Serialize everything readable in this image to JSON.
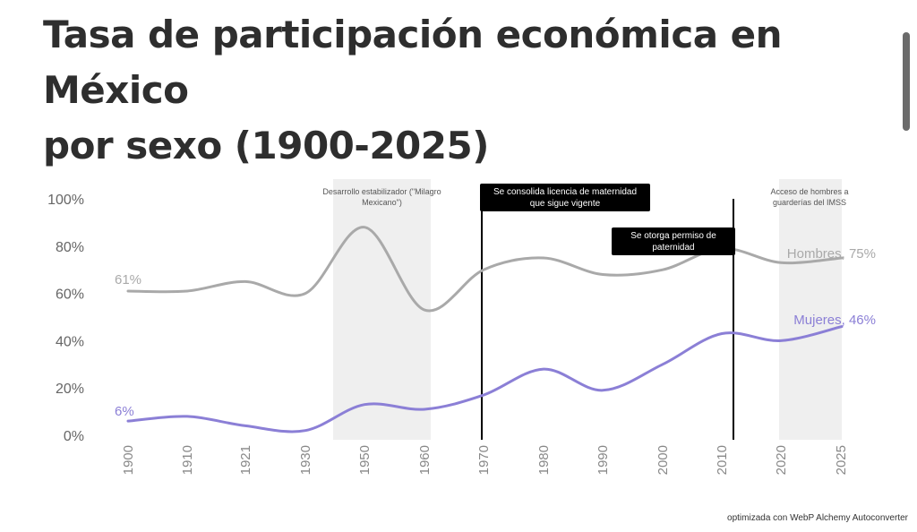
{
  "title": {
    "line1": "Tasa de participación económica en México",
    "line2": "por sexo (1900-2025)"
  },
  "footer": "optimizada con WebP Alchemy Autoconverter",
  "colors": {
    "hombres": "#a9a9a9",
    "mujeres": "#8b7fd6",
    "band": "#efefef",
    "callout": "#000000"
  },
  "chart_data": {
    "type": "line",
    "title": "Tasa de participación económica en México por sexo (1900-2025)",
    "x_ticks": [
      "1900",
      "1910",
      "1921",
      "1930",
      "1950",
      "1960",
      "1970",
      "1980",
      "1990",
      "2000",
      "2010",
      "2020",
      "2025"
    ],
    "y_ticks": [
      "0%",
      "20%",
      "40%",
      "60%",
      "80%",
      "100%"
    ],
    "ylim": [
      0,
      100
    ],
    "grid": false,
    "series": [
      {
        "name": "Hombres",
        "end_label": "Hombres, 75%",
        "start_label": "61%",
        "values": [
          61,
          61,
          65,
          60,
          88,
          53,
          70,
          75,
          68,
          70,
          79,
          73,
          75
        ]
      },
      {
        "name": "Mujeres",
        "end_label": "Mujeres, 46%",
        "start_label": "6%",
        "values": [
          6,
          8,
          4,
          2,
          13,
          11,
          17,
          28,
          19,
          30,
          43,
          40,
          46
        ]
      }
    ],
    "shaded_periods": [
      {
        "from": "1930",
        "to": "1960",
        "label_lines": [
          "Desarrollo estabilizador (\"Milagro",
          "Mexicano\")"
        ]
      },
      {
        "from": "2020",
        "to": "2025",
        "label_lines": [
          "Acceso de hombres a",
          "guarderías del IMSS"
        ]
      }
    ],
    "events": [
      {
        "at": "1970",
        "label_lines": [
          "Se consolida licencia de maternidad",
          "que sigue vigente"
        ]
      },
      {
        "at": "2010",
        "label_lines": [
          "Se otorga permiso de",
          "paternidad"
        ]
      }
    ]
  }
}
